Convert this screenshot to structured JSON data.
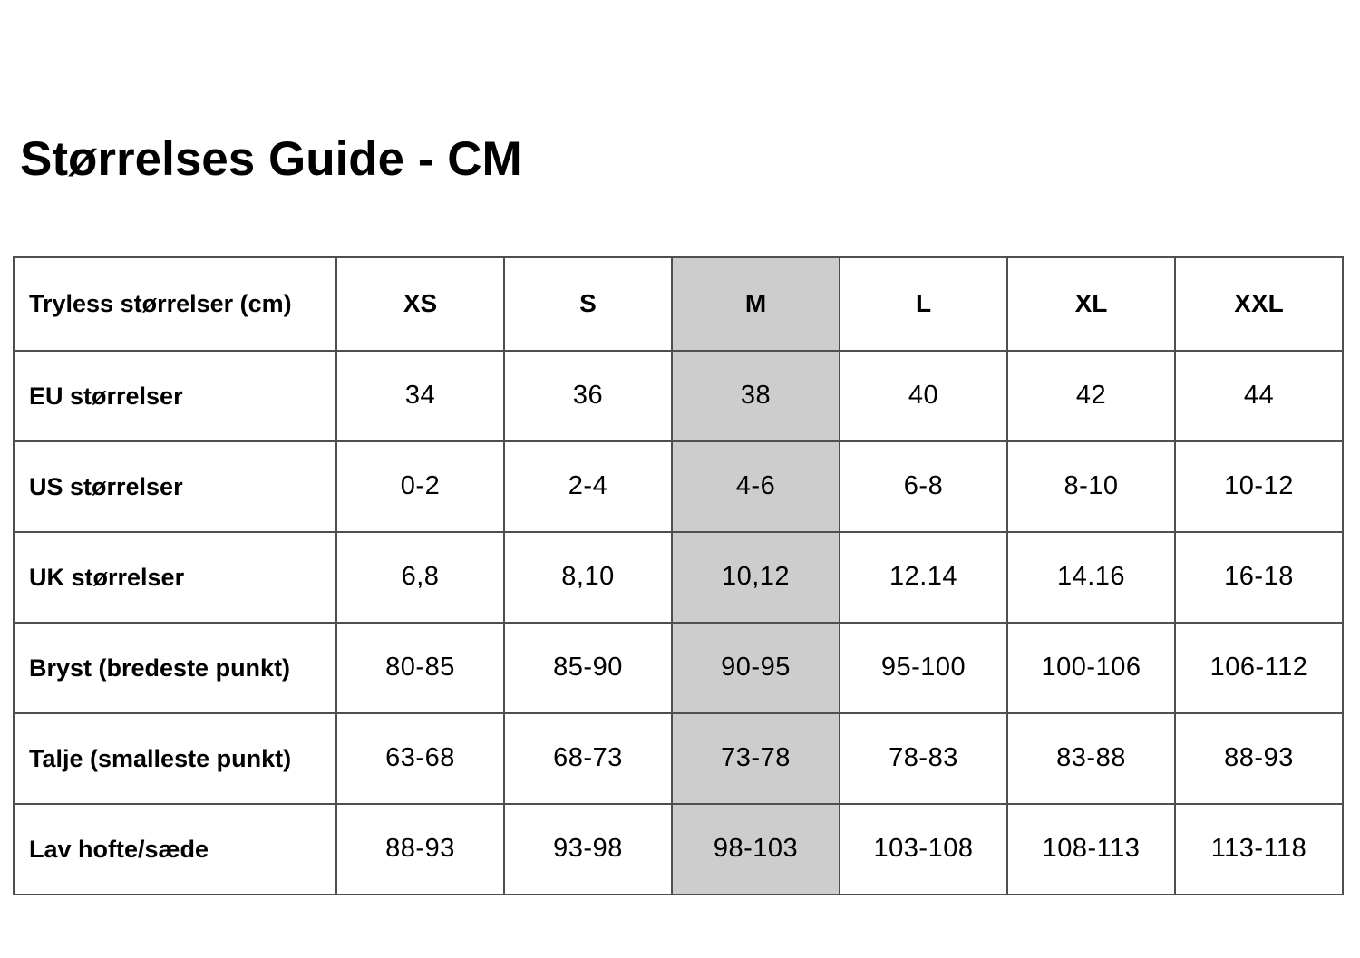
{
  "page": {
    "title": "Størrelses Guide - CM"
  },
  "colors": {
    "highlight_column_bg": "#cdcdcd",
    "table_border": "#4f4f4f",
    "text": "#000000",
    "page_bg": "#ffffff"
  },
  "table": {
    "type": "table",
    "highlighted_column": "M",
    "header": {
      "label": "Tryless størrelser (cm)",
      "sizes": [
        "XS",
        "S",
        "M",
        "L",
        "XL",
        "XXL"
      ]
    },
    "rows": [
      {
        "label": "EU størrelser",
        "values": [
          "34",
          "36",
          "38",
          "40",
          "42",
          "44"
        ]
      },
      {
        "label": "US størrelser",
        "values": [
          "0-2",
          "2-4",
          "4-6",
          "6-8",
          "8-10",
          "10-12"
        ]
      },
      {
        "label": "UK størrelser",
        "values": [
          "6,8",
          "8,10",
          "10,12",
          "12.14",
          "14.16",
          "16-18"
        ]
      },
      {
        "label": "Bryst (bredeste punkt)",
        "values": [
          "80-85",
          "85-90",
          "90-95",
          "95-100",
          "100-106",
          "106-112"
        ]
      },
      {
        "label": "Talje (smalleste punkt)",
        "values": [
          "63-68",
          "68-73",
          "73-78",
          "78-83",
          "83-88",
          "88-93"
        ]
      },
      {
        "label": "Lav hofte/sæde",
        "values": [
          "88-93",
          "93-98",
          "98-103",
          "103-108",
          "108-113",
          "113-118"
        ]
      }
    ]
  }
}
